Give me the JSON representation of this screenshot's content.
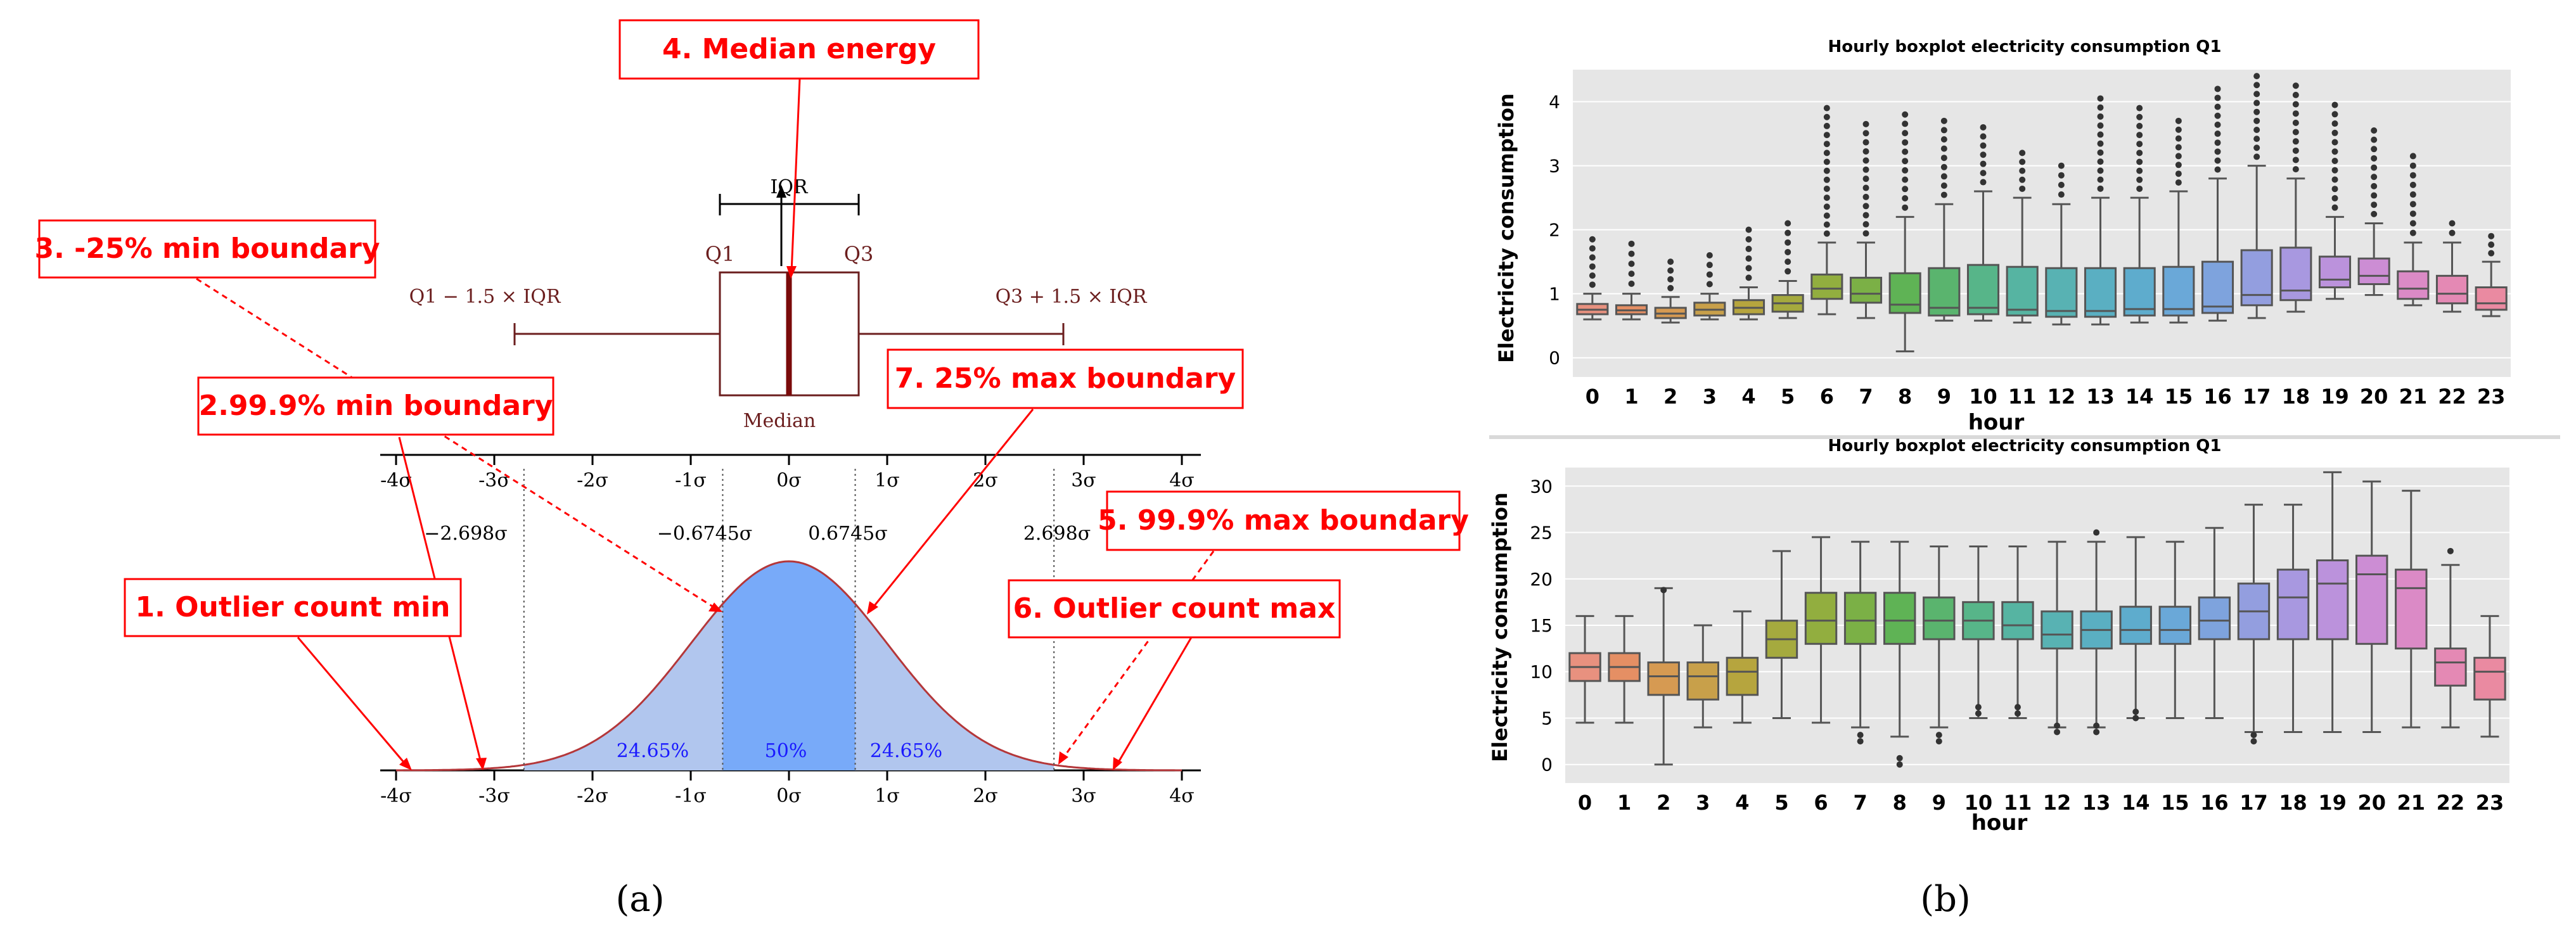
{
  "panels": {
    "a_label": "(a)",
    "b_label": "(b)"
  },
  "chart_data": [
    {
      "type": "area",
      "id": "normal-distribution-diagram",
      "title": "",
      "xlim": [
        -4,
        4
      ],
      "axis_ticks_top": [
        "-4σ",
        "-3σ",
        "-2σ",
        "-1σ",
        "0σ",
        "1σ",
        "2σ",
        "3σ",
        "4σ"
      ],
      "axis_ticks_bottom": [
        "-4σ",
        "-3σ",
        "-2σ",
        "-1σ",
        "0σ",
        "1σ",
        "2σ",
        "3σ",
        "4σ"
      ],
      "boundaries": [
        -2.698,
        -0.6745,
        0.6745,
        2.698
      ],
      "boundary_labels": [
        "−2.698σ",
        "−0.6745σ",
        "0.6745σ",
        "2.698σ"
      ],
      "region_labels": [
        "24.65%",
        "50%",
        "24.65%"
      ],
      "boxplot": {
        "iqr_label": "IQR",
        "q1_label": "Q1",
        "q3_label": "Q3",
        "lower_fence_label": "Q1 − 1.5 × IQR",
        "upper_fence_label": "Q3 + 1.5 × IQR",
        "median_label": "Median"
      },
      "callouts": [
        "1. Outlier count min",
        "2.99.9% min boundary",
        "3. -25% min boundary",
        "4. Median energy",
        "5. 99.9% max boundary",
        "6. Outlier count max",
        "7. 25% max boundary"
      ]
    },
    {
      "type": "boxplot",
      "id": "boxplot-top",
      "title": "Hourly boxplot electricity consumption Q1",
      "xlabel": "hour",
      "ylabel": "Electricity consumption",
      "ylim": [
        -0.3,
        4.5
      ],
      "yticks": [
        "0",
        "1",
        "2",
        "3",
        "4"
      ],
      "categories": [
        "0",
        "1",
        "2",
        "3",
        "4",
        "5",
        "6",
        "7",
        "8",
        "9",
        "10",
        "11",
        "12",
        "13",
        "14",
        "15",
        "16",
        "17",
        "18",
        "19",
        "20",
        "21",
        "22",
        "23"
      ],
      "colors": [
        "#e8917f",
        "#e58f64",
        "#d69a52",
        "#c8a04a",
        "#b6a53e",
        "#a5aa3e",
        "#92ae3f",
        "#7bb046",
        "#5fb355",
        "#5ab46e",
        "#57b589",
        "#56b4a2",
        "#58b2b3",
        "#5aafc2",
        "#5eaccd",
        "#6aa8d8",
        "#7ea3dd",
        "#939edf",
        "#a898e0",
        "#bb92dc",
        "#cc8dd4",
        "#db8ac6",
        "#e489b4",
        "#ea8aa1"
      ],
      "q1": [
        0.68,
        0.68,
        0.62,
        0.66,
        0.68,
        0.72,
        0.92,
        0.86,
        0.7,
        0.66,
        0.68,
        0.66,
        0.64,
        0.64,
        0.66,
        0.66,
        0.7,
        0.82,
        0.9,
        1.1,
        1.15,
        0.92,
        0.85,
        0.75
      ],
      "median": [
        0.75,
        0.74,
        0.69,
        0.75,
        0.78,
        0.85,
        1.08,
        1.0,
        0.83,
        0.78,
        0.78,
        0.75,
        0.73,
        0.73,
        0.76,
        0.76,
        0.8,
        0.98,
        1.05,
        1.22,
        1.28,
        1.08,
        1.0,
        0.85
      ],
      "q3": [
        0.84,
        0.82,
        0.78,
        0.86,
        0.9,
        0.98,
        1.3,
        1.25,
        1.32,
        1.4,
        1.45,
        1.42,
        1.4,
        1.4,
        1.4,
        1.42,
        1.5,
        1.68,
        1.72,
        1.58,
        1.55,
        1.35,
        1.28,
        1.1
      ],
      "whisker_low": [
        0.6,
        0.6,
        0.55,
        0.6,
        0.6,
        0.62,
        0.68,
        0.62,
        0.1,
        0.58,
        0.58,
        0.55,
        0.52,
        0.52,
        0.55,
        0.55,
        0.58,
        0.62,
        0.72,
        0.92,
        0.98,
        0.82,
        0.72,
        0.65
      ],
      "whisker_high": [
        1.0,
        1.0,
        0.95,
        1.0,
        1.1,
        1.2,
        1.8,
        1.8,
        2.2,
        2.4,
        2.6,
        2.5,
        2.4,
        2.5,
        2.5,
        2.6,
        2.8,
        3.0,
        2.8,
        2.2,
        2.1,
        1.8,
        1.8,
        1.5
      ],
      "outliers_high": [
        1.85,
        1.78,
        1.5,
        1.6,
        2.0,
        2.1,
        3.9,
        3.65,
        3.8,
        3.7,
        3.6,
        3.2,
        3.0,
        4.05,
        3.9,
        3.7,
        4.2,
        4.4,
        4.25,
        3.95,
        3.55,
        3.15,
        2.1,
        1.9
      ]
    },
    {
      "type": "boxplot",
      "id": "boxplot-bottom",
      "title": "Hourly boxplot electricity consumption Q1",
      "xlabel": "hour",
      "ylabel": "Electricity consumption",
      "ylim": [
        -2,
        32
      ],
      "yticks": [
        "0",
        "5",
        "10",
        "15",
        "20",
        "25",
        "30"
      ],
      "categories": [
        "0",
        "1",
        "2",
        "3",
        "4",
        "5",
        "6",
        "7",
        "8",
        "9",
        "10",
        "11",
        "12",
        "13",
        "14",
        "15",
        "16",
        "17",
        "18",
        "19",
        "20",
        "21",
        "22",
        "23"
      ],
      "colors": [
        "#e8917f",
        "#e58f64",
        "#d69a52",
        "#c8a04a",
        "#b6a53e",
        "#a5aa3e",
        "#92ae3f",
        "#7bb046",
        "#5fb355",
        "#5ab46e",
        "#57b589",
        "#56b4a2",
        "#58b2b3",
        "#5aafc2",
        "#5eaccd",
        "#6aa8d8",
        "#7ea3dd",
        "#939edf",
        "#a898e0",
        "#bb92dc",
        "#cc8dd4",
        "#db8ac6",
        "#e489b4",
        "#ea8aa1"
      ],
      "q1": [
        9.0,
        9.0,
        7.5,
        7.0,
        7.5,
        11.5,
        13.0,
        13.0,
        13.0,
        13.5,
        13.5,
        13.5,
        12.5,
        12.5,
        13.0,
        13.0,
        13.5,
        13.5,
        13.5,
        13.5,
        13.0,
        12.5,
        8.5,
        7.0
      ],
      "median": [
        10.5,
        10.5,
        9.5,
        9.5,
        10.0,
        13.5,
        15.5,
        15.5,
        15.5,
        15.5,
        15.5,
        15.0,
        14.0,
        14.5,
        14.5,
        14.5,
        15.5,
        16.5,
        18.0,
        19.5,
        20.5,
        19.0,
        11.0,
        10.0
      ],
      "q3": [
        12.0,
        12.0,
        11.0,
        11.0,
        11.5,
        15.5,
        18.5,
        18.5,
        18.5,
        18.0,
        17.5,
        17.5,
        16.5,
        16.5,
        17.0,
        17.0,
        18.0,
        19.5,
        21.0,
        22.0,
        22.5,
        21.0,
        12.5,
        11.5
      ],
      "whisker_low": [
        4.5,
        4.5,
        0.0,
        4.0,
        4.5,
        5.0,
        4.5,
        4.0,
        3.0,
        4.0,
        5.0,
        5.0,
        4.0,
        4.0,
        5.0,
        5.0,
        5.0,
        3.5,
        3.5,
        3.5,
        3.5,
        4.0,
        4.0,
        3.0
      ],
      "whisker_high": [
        16.0,
        16.0,
        19.0,
        15.0,
        16.5,
        23.0,
        24.5,
        24.0,
        24.0,
        23.5,
        23.5,
        23.5,
        24.0,
        24.0,
        24.5,
        24.0,
        25.5,
        28.0,
        28.0,
        31.5,
        30.5,
        29.5,
        21.5,
        16.0
      ],
      "outliers_high": [
        null,
        null,
        18.8,
        null,
        null,
        null,
        null,
        null,
        null,
        null,
        null,
        null,
        null,
        25.0,
        null,
        null,
        null,
        null,
        null,
        null,
        null,
        null,
        23.0,
        null
      ],
      "outliers_low": [
        null,
        null,
        null,
        null,
        null,
        null,
        null,
        2.5,
        0.0,
        2.5,
        5.5,
        5.5,
        3.5,
        3.5,
        5.0,
        null,
        null,
        2.5,
        null,
        null,
        null,
        null,
        null,
        null
      ]
    }
  ]
}
